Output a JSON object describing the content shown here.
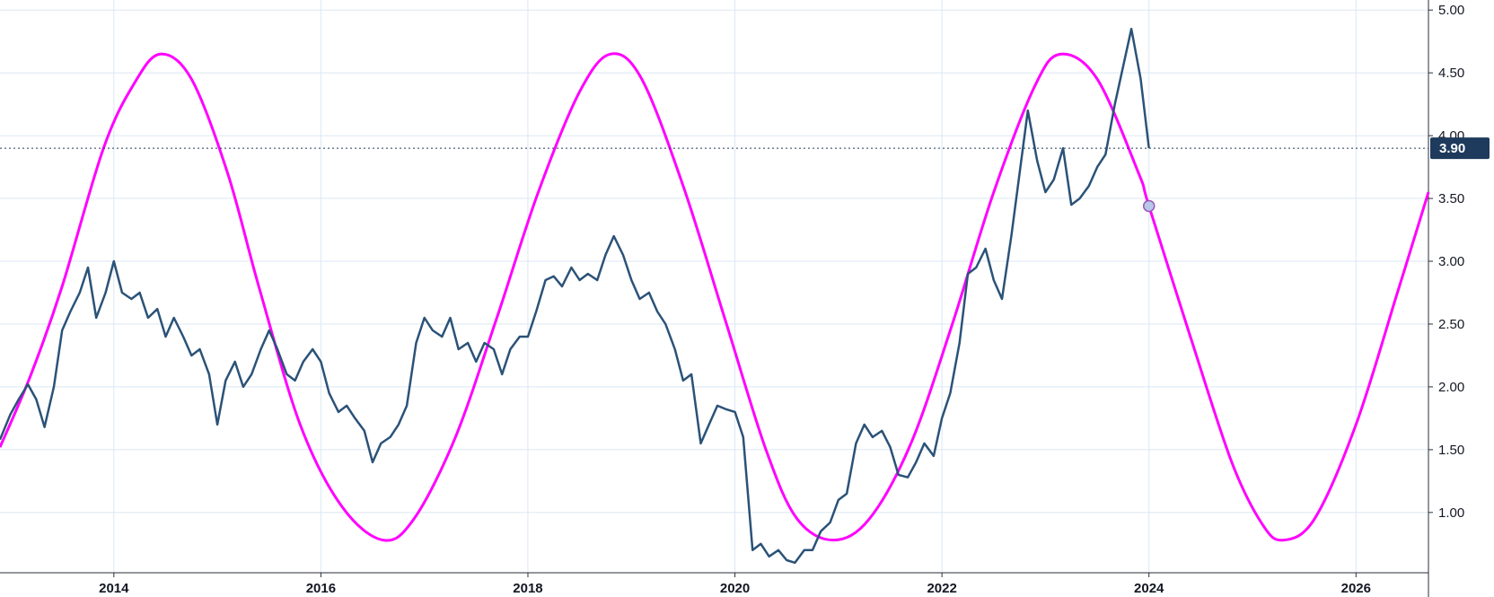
{
  "chart_data": {
    "type": "line",
    "x_axis": {
      "range": [
        2012.9,
        2026.7
      ],
      "ticks": [
        2014,
        2016,
        2018,
        2020,
        2022,
        2024,
        2026
      ],
      "tick_labels": [
        "2014",
        "2016",
        "2018",
        "2020",
        "2022",
        "2024",
        "2026"
      ]
    },
    "y_axis": {
      "range": [
        0.52,
        5.08
      ],
      "position": "right",
      "ticks": [
        1.0,
        1.5,
        2.0,
        2.5,
        3.0,
        3.5,
        4.0,
        4.5,
        5.0
      ],
      "tick_labels": [
        "1.00",
        "1.50",
        "2.00",
        "2.50",
        "3.00",
        "3.50",
        "4.00",
        "4.50",
        "5.00"
      ]
    },
    "grid": true,
    "legend": "none",
    "current_value_label": "3.90",
    "current_value": 3.9,
    "series": [
      {
        "role": "price",
        "color": "#2b5278",
        "points": [
          [
            2012.9,
            1.58
          ],
          [
            2013.0,
            1.78
          ],
          [
            2013.08,
            1.9
          ],
          [
            2013.17,
            2.02
          ],
          [
            2013.25,
            1.9
          ],
          [
            2013.33,
            1.68
          ],
          [
            2013.42,
            2.0
          ],
          [
            2013.5,
            2.45
          ],
          [
            2013.58,
            2.6
          ],
          [
            2013.67,
            2.75
          ],
          [
            2013.75,
            2.95
          ],
          [
            2013.83,
            2.55
          ],
          [
            2013.92,
            2.75
          ],
          [
            2014.0,
            3.0
          ],
          [
            2014.08,
            2.75
          ],
          [
            2014.17,
            2.7
          ],
          [
            2014.25,
            2.75
          ],
          [
            2014.33,
            2.55
          ],
          [
            2014.42,
            2.62
          ],
          [
            2014.5,
            2.4
          ],
          [
            2014.58,
            2.55
          ],
          [
            2014.67,
            2.4
          ],
          [
            2014.75,
            2.25
          ],
          [
            2014.83,
            2.3
          ],
          [
            2014.92,
            2.1
          ],
          [
            2015.0,
            1.7
          ],
          [
            2015.08,
            2.05
          ],
          [
            2015.17,
            2.2
          ],
          [
            2015.25,
            2.0
          ],
          [
            2015.33,
            2.1
          ],
          [
            2015.42,
            2.3
          ],
          [
            2015.5,
            2.45
          ],
          [
            2015.58,
            2.3
          ],
          [
            2015.67,
            2.1
          ],
          [
            2015.75,
            2.05
          ],
          [
            2015.83,
            2.2
          ],
          [
            2015.92,
            2.3
          ],
          [
            2016.0,
            2.2
          ],
          [
            2016.08,
            1.95
          ],
          [
            2016.17,
            1.8
          ],
          [
            2016.25,
            1.85
          ],
          [
            2016.33,
            1.75
          ],
          [
            2016.42,
            1.65
          ],
          [
            2016.5,
            1.4
          ],
          [
            2016.58,
            1.55
          ],
          [
            2016.67,
            1.6
          ],
          [
            2016.75,
            1.7
          ],
          [
            2016.83,
            1.85
          ],
          [
            2016.92,
            2.35
          ],
          [
            2017.0,
            2.55
          ],
          [
            2017.08,
            2.45
          ],
          [
            2017.17,
            2.4
          ],
          [
            2017.25,
            2.55
          ],
          [
            2017.33,
            2.3
          ],
          [
            2017.42,
            2.35
          ],
          [
            2017.5,
            2.2
          ],
          [
            2017.58,
            2.35
          ],
          [
            2017.67,
            2.3
          ],
          [
            2017.75,
            2.1
          ],
          [
            2017.83,
            2.3
          ],
          [
            2017.92,
            2.4
          ],
          [
            2018.0,
            2.4
          ],
          [
            2018.08,
            2.6
          ],
          [
            2018.17,
            2.85
          ],
          [
            2018.25,
            2.88
          ],
          [
            2018.33,
            2.8
          ],
          [
            2018.42,
            2.95
          ],
          [
            2018.5,
            2.85
          ],
          [
            2018.58,
            2.9
          ],
          [
            2018.67,
            2.85
          ],
          [
            2018.75,
            3.05
          ],
          [
            2018.83,
            3.2
          ],
          [
            2018.92,
            3.05
          ],
          [
            2019.0,
            2.85
          ],
          [
            2019.08,
            2.7
          ],
          [
            2019.17,
            2.75
          ],
          [
            2019.25,
            2.6
          ],
          [
            2019.33,
            2.5
          ],
          [
            2019.42,
            2.3
          ],
          [
            2019.5,
            2.05
          ],
          [
            2019.58,
            2.1
          ],
          [
            2019.67,
            1.55
          ],
          [
            2019.75,
            1.7
          ],
          [
            2019.83,
            1.85
          ],
          [
            2019.92,
            1.82
          ],
          [
            2020.0,
            1.8
          ],
          [
            2020.08,
            1.6
          ],
          [
            2020.17,
            0.7
          ],
          [
            2020.25,
            0.75
          ],
          [
            2020.33,
            0.65
          ],
          [
            2020.42,
            0.7
          ],
          [
            2020.5,
            0.62
          ],
          [
            2020.58,
            0.6
          ],
          [
            2020.67,
            0.7
          ],
          [
            2020.75,
            0.7
          ],
          [
            2020.83,
            0.85
          ],
          [
            2020.92,
            0.92
          ],
          [
            2021.0,
            1.1
          ],
          [
            2021.08,
            1.15
          ],
          [
            2021.17,
            1.55
          ],
          [
            2021.25,
            1.7
          ],
          [
            2021.33,
            1.6
          ],
          [
            2021.42,
            1.65
          ],
          [
            2021.5,
            1.52
          ],
          [
            2021.58,
            1.3
          ],
          [
            2021.67,
            1.28
          ],
          [
            2021.75,
            1.4
          ],
          [
            2021.83,
            1.55
          ],
          [
            2021.92,
            1.45
          ],
          [
            2022.0,
            1.75
          ],
          [
            2022.08,
            1.95
          ],
          [
            2022.17,
            2.35
          ],
          [
            2022.25,
            2.9
          ],
          [
            2022.33,
            2.95
          ],
          [
            2022.42,
            3.1
          ],
          [
            2022.5,
            2.85
          ],
          [
            2022.58,
            2.7
          ],
          [
            2022.67,
            3.2
          ],
          [
            2022.75,
            3.7
          ],
          [
            2022.83,
            4.2
          ],
          [
            2022.92,
            3.8
          ],
          [
            2023.0,
            3.55
          ],
          [
            2023.08,
            3.65
          ],
          [
            2023.17,
            3.9
          ],
          [
            2023.25,
            3.45
          ],
          [
            2023.33,
            3.5
          ],
          [
            2023.42,
            3.6
          ],
          [
            2023.5,
            3.75
          ],
          [
            2023.58,
            3.85
          ],
          [
            2023.67,
            4.25
          ],
          [
            2023.75,
            4.55
          ],
          [
            2023.83,
            4.85
          ],
          [
            2023.92,
            4.45
          ],
          [
            2024.0,
            3.9
          ]
        ]
      },
      {
        "role": "cycle",
        "color": "#ff00ff",
        "points": [
          [
            2012.9,
            1.52
          ],
          [
            2013.2,
            2.1
          ],
          [
            2013.5,
            2.8
          ],
          [
            2013.9,
            3.9
          ],
          [
            2014.2,
            4.42
          ],
          [
            2014.45,
            4.65
          ],
          [
            2014.75,
            4.45
          ],
          [
            2015.1,
            3.7
          ],
          [
            2015.4,
            2.8
          ],
          [
            2015.8,
            1.7
          ],
          [
            2016.2,
            1.05
          ],
          [
            2016.6,
            0.78
          ],
          [
            2016.9,
            0.95
          ],
          [
            2017.3,
            1.6
          ],
          [
            2017.7,
            2.55
          ],
          [
            2018.1,
            3.55
          ],
          [
            2018.5,
            4.35
          ],
          [
            2018.8,
            4.65
          ],
          [
            2019.1,
            4.45
          ],
          [
            2019.5,
            3.6
          ],
          [
            2019.9,
            2.55
          ],
          [
            2020.3,
            1.5
          ],
          [
            2020.6,
            0.95
          ],
          [
            2020.95,
            0.78
          ],
          [
            2021.3,
            0.95
          ],
          [
            2021.7,
            1.55
          ],
          [
            2022.1,
            2.5
          ],
          [
            2022.5,
            3.55
          ],
          [
            2022.9,
            4.4
          ],
          [
            2023.15,
            4.65
          ],
          [
            2023.5,
            4.45
          ],
          [
            2023.9,
            3.7
          ],
          [
            2024.0,
            3.44
          ],
          [
            2024.4,
            2.4
          ],
          [
            2024.8,
            1.4
          ],
          [
            2025.1,
            0.9
          ],
          [
            2025.3,
            0.78
          ],
          [
            2025.6,
            0.95
          ],
          [
            2026.0,
            1.7
          ],
          [
            2026.4,
            2.75
          ],
          [
            2026.7,
            3.55
          ]
        ]
      }
    ],
    "marker": {
      "x": 2024.0,
      "y": 3.44,
      "fill": "#b8c8ea",
      "stroke": "#9b59b6"
    },
    "colors": {
      "grid": "#dbe7f3",
      "current_value_badge": "#1e3a5c",
      "current_value_line": "#1e3a5c",
      "axis": "#2a2e39"
    }
  }
}
